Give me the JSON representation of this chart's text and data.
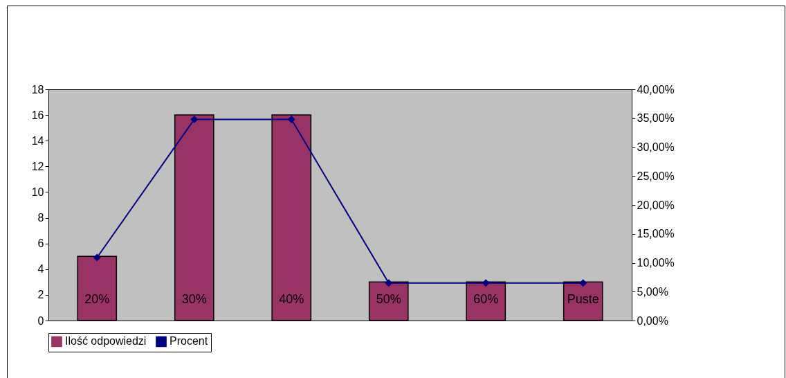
{
  "chart_data": {
    "type": "bar",
    "categories": [
      "20%",
      "30%",
      "40%",
      "50%",
      "60%",
      "Puste"
    ],
    "series": [
      {
        "name": "Ilość odpowiedzi",
        "color": "#993366",
        "values": [
          5,
          16,
          16,
          3,
          3,
          3
        ]
      },
      {
        "name": "Procent",
        "type": "line",
        "axis": "y2",
        "color": "#000080",
        "values": [
          10.9,
          34.8,
          34.8,
          6.5,
          6.5,
          6.5
        ]
      }
    ],
    "ylim": [
      0,
      18
    ],
    "yticks": [
      0,
      2,
      4,
      6,
      8,
      10,
      12,
      14,
      16,
      18
    ],
    "y2lim": [
      0,
      40
    ],
    "y2ticks": [
      {
        "value": 0,
        "label": "0,00%"
      },
      {
        "value": 5,
        "label": "5,00%"
      },
      {
        "value": 10,
        "label": "10,00%"
      },
      {
        "value": 15,
        "label": "15,00%"
      },
      {
        "value": 20,
        "label": "20,00%"
      },
      {
        "value": 25,
        "label": "25,00%"
      },
      {
        "value": 30,
        "label": "30,00%"
      },
      {
        "value": 35,
        "label": "35,00%"
      },
      {
        "value": 40,
        "label": "40,00%"
      }
    ],
    "grid": false,
    "legend": "bottom",
    "marker": "diamond",
    "line_style": "solid"
  }
}
